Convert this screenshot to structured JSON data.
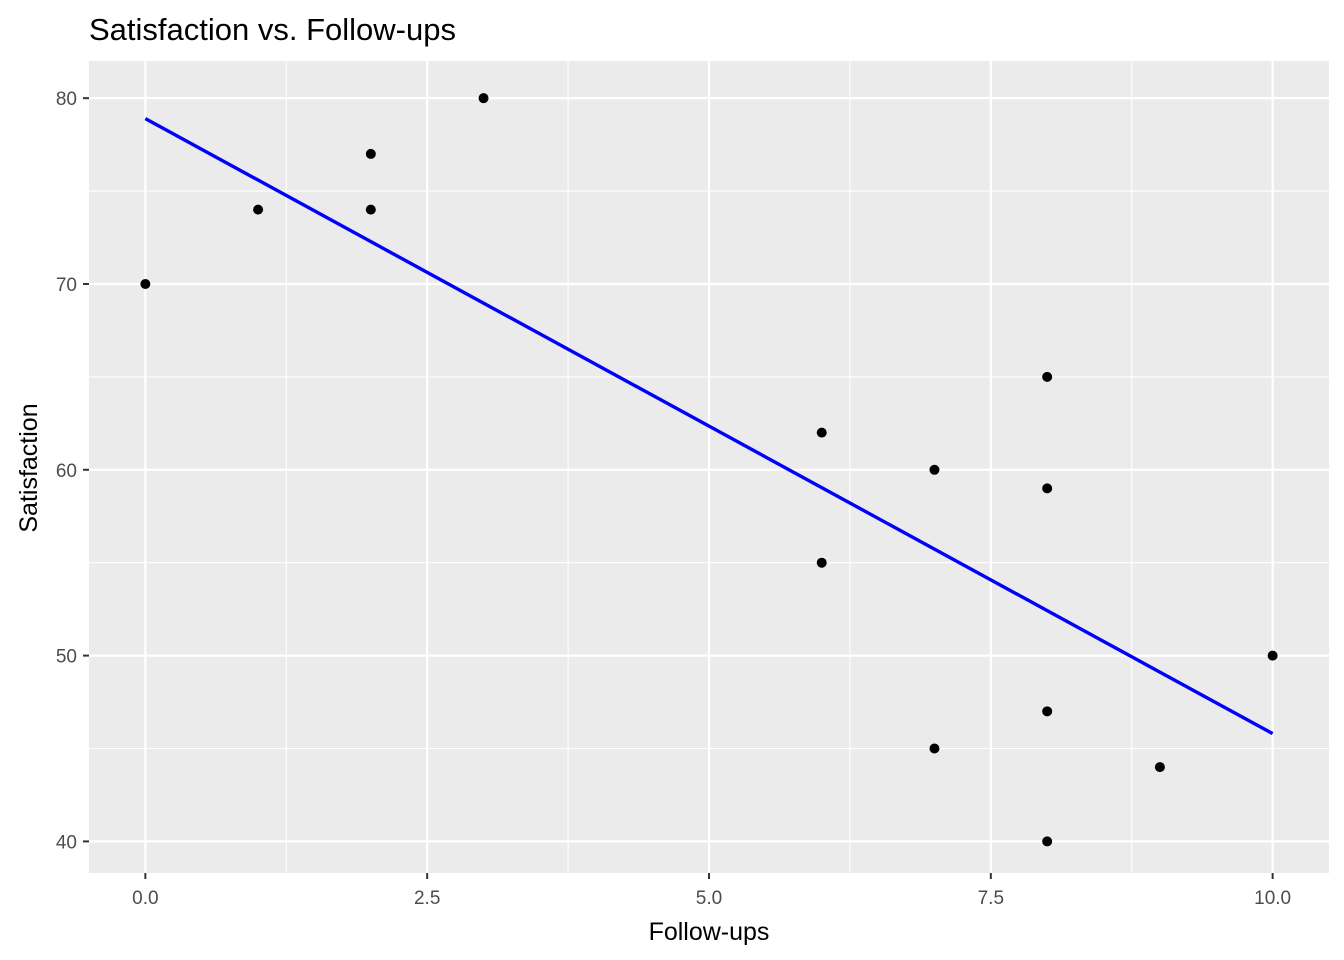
{
  "chart_data": {
    "type": "scatter",
    "title": "Satisfaction vs. Follow-ups",
    "xlabel": "Follow-ups",
    "ylabel": "Satisfaction",
    "xlim": [
      -0.5,
      10.5
    ],
    "ylim": [
      38.3,
      82.0
    ],
    "x_ticks": [
      0,
      2.5,
      5,
      7.5,
      10
    ],
    "x_tick_labels": [
      "0.0",
      "2.5",
      "5.0",
      "7.5",
      "10.0"
    ],
    "y_ticks": [
      40,
      50,
      60,
      70,
      80
    ],
    "y_tick_labels": [
      "40",
      "50",
      "60",
      "70",
      "80"
    ],
    "x_minor": [
      1.25,
      3.75,
      6.25,
      8.75
    ],
    "y_minor": [
      45,
      55,
      65,
      75
    ],
    "grid": true,
    "legend": "none",
    "panel_color": "#ebebeb",
    "point_color": "#000000",
    "line_color": "#0000ff",
    "points": [
      {
        "x": 0,
        "y": 70
      },
      {
        "x": 1,
        "y": 74
      },
      {
        "x": 2,
        "y": 77
      },
      {
        "x": 2,
        "y": 74
      },
      {
        "x": 3,
        "y": 80
      },
      {
        "x": 6,
        "y": 62
      },
      {
        "x": 6,
        "y": 55
      },
      {
        "x": 7,
        "y": 60
      },
      {
        "x": 7,
        "y": 45
      },
      {
        "x": 8,
        "y": 65
      },
      {
        "x": 8,
        "y": 59
      },
      {
        "x": 8,
        "y": 47
      },
      {
        "x": 8,
        "y": 40
      },
      {
        "x": 9,
        "y": 44
      },
      {
        "x": 10,
        "y": 50
      }
    ],
    "trend_line": {
      "x": [
        0,
        10
      ],
      "y": [
        78.9,
        45.8
      ]
    }
  }
}
